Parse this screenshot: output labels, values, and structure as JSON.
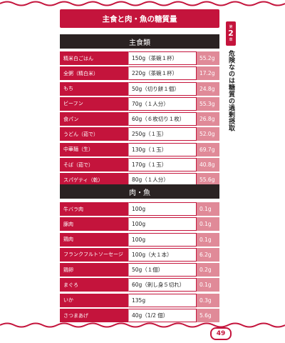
{
  "title": "主食と肉・魚の糖質量",
  "chapter": {
    "prefix": "第",
    "number": "2",
    "suffix": "章",
    "title": "危険なのは糖質の過剰摂取"
  },
  "sections": [
    {
      "header": "主食類",
      "rows": [
        {
          "name": "精米白ごはん",
          "amount": "150g（茶碗１杯）",
          "sugar": "55.2g"
        },
        {
          "name": "全粥（精白米）",
          "amount": "220g（茶碗１杯）",
          "sugar": "17.2g"
        },
        {
          "name": "もち",
          "amount": "50g（切り餅１個）",
          "sugar": "24.8g"
        },
        {
          "name": "ビーフン",
          "amount": "70g（１人分）",
          "sugar": "55.3g"
        },
        {
          "name": "食パン",
          "amount": "60g（６枚切り１枚）",
          "sugar": "26.8g"
        },
        {
          "name": "うどん（茹で）",
          "amount": "250g（１玉）",
          "sugar": "52.0g"
        },
        {
          "name": "中華麺（生）",
          "amount": "130g（１玉）",
          "sugar": "69.7g"
        },
        {
          "name": "そば（茹で）",
          "amount": "170g（１玉）",
          "sugar": "40.8g"
        },
        {
          "name": "スパゲティ（乾）",
          "amount": "80g（１人分）",
          "sugar": "55.6g"
        }
      ]
    },
    {
      "header": "肉・魚",
      "rows": [
        {
          "name": "牛バラ肉",
          "amount": "100g",
          "sugar": "0.1g"
        },
        {
          "name": "豚肉",
          "amount": "100g",
          "sugar": "0.1g"
        },
        {
          "name": "鶏肉",
          "amount": "100g",
          "sugar": "0.1g"
        },
        {
          "name": "フランクフルトソーセージ",
          "amount": "100g（大１本）",
          "sugar": "6.2g"
        },
        {
          "name": "鶏卵",
          "amount": "50g（１個）",
          "sugar": "0.2g"
        },
        {
          "name": "まぐろ",
          "amount": "60g（刺し身５切れ）",
          "sugar": "0.1g"
        },
        {
          "name": "いか",
          "amount": "135g",
          "sugar": "0.3g"
        },
        {
          "name": "さつまあげ",
          "amount": "40g（1/2 個）",
          "sugar": "5.6g"
        }
      ]
    }
  ],
  "page_number": "49",
  "colors": {
    "accent": "#c4143c",
    "header_dark": "#2a2222",
    "sugar_cell": "#e08a98"
  }
}
